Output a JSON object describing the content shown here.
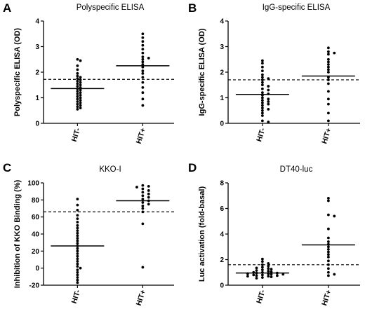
{
  "chart_data": [
    {
      "type": "scatter",
      "panel_label": "A",
      "title": "Polyspecific ELISA",
      "ylabel": "Polyspecific ELISA (OD)",
      "ylim": [
        0,
        4
      ],
      "yticks": [
        0,
        1,
        2,
        3,
        4
      ],
      "categories": [
        "HIT-",
        "HIT+"
      ],
      "cutoff": 1.72,
      "series": [
        {
          "category": "HIT-",
          "mean": 1.36,
          "values": [
            2.5,
            2.45,
            2.25,
            2.1,
            1.95,
            1.85,
            1.8,
            1.75,
            1.7,
            1.65,
            1.6,
            1.55,
            1.5,
            1.45,
            1.4,
            1.35,
            1.3,
            1.25,
            1.2,
            1.15,
            1.1,
            1.05,
            1.0,
            0.95,
            0.9,
            0.85,
            0.8,
            0.75,
            0.7,
            0.65,
            0.6,
            0.55
          ]
        },
        {
          "category": "HIT+",
          "mean": 2.25,
          "values": [
            3.5,
            3.35,
            3.2,
            3.05,
            2.9,
            2.75,
            2.6,
            2.55,
            2.5,
            2.4,
            2.3,
            2.2,
            2.05,
            1.95,
            1.8,
            1.6,
            1.4,
            1.2,
            0.95,
            0.7
          ]
        }
      ]
    },
    {
      "type": "scatter",
      "panel_label": "B",
      "title": "IgG-specific ELISA",
      "ylabel": "IgG-specific ELISA (OD)",
      "ylim": [
        0,
        4
      ],
      "yticks": [
        0,
        1,
        2,
        3,
        4
      ],
      "categories": [
        "HIT-",
        "HIT+"
      ],
      "cutoff": 1.7,
      "series": [
        {
          "category": "HIT-",
          "mean": 1.13,
          "values": [
            2.45,
            2.35,
            2.2,
            2.05,
            1.9,
            1.8,
            1.75,
            1.7,
            1.6,
            1.5,
            1.45,
            1.35,
            1.3,
            1.2,
            1.15,
            1.1,
            1.0,
            0.95,
            0.9,
            0.85,
            0.8,
            0.75,
            0.7,
            0.6,
            0.55,
            0.5,
            0.4,
            0.3,
            0.1,
            0.05
          ]
        },
        {
          "category": "HIT+",
          "mean": 1.85,
          "values": [
            2.95,
            2.8,
            2.75,
            2.7,
            2.5,
            2.4,
            2.3,
            2.2,
            2.1,
            2.0,
            1.8,
            1.7,
            1.55,
            1.25,
            0.95,
            0.75,
            0.4,
            0.1
          ]
        }
      ]
    },
    {
      "type": "scatter",
      "panel_label": "C",
      "title": "KKO-I",
      "ylabel": "Inhibition of KKO Binding (%)",
      "ylim": [
        -20,
        100
      ],
      "yticks": [
        -20,
        0,
        20,
        40,
        60,
        80,
        100
      ],
      "categories": [
        "HIT-",
        "HIT+"
      ],
      "cutoff": 66,
      "series": [
        {
          "category": "HIT-",
          "mean": 26,
          "values": [
            81,
            74,
            68,
            62,
            58,
            54,
            50,
            47,
            44,
            41,
            38,
            35,
            32,
            29,
            26,
            23,
            20,
            17,
            14,
            11,
            8,
            5,
            2,
            0,
            -2,
            -5,
            -8,
            -11,
            -14,
            -17
          ]
        },
        {
          "category": "HIT+",
          "mean": 79,
          "values": [
            97,
            96,
            95,
            93,
            91,
            89,
            87,
            85,
            83,
            81,
            79,
            77,
            75,
            73,
            70,
            66,
            52,
            1
          ]
        }
      ]
    },
    {
      "type": "scatter",
      "panel_label": "D",
      "title": "DT40-luc",
      "ylabel": "Luc activation (fold-basal)",
      "ylim": [
        0,
        8
      ],
      "yticks": [
        0,
        2,
        4,
        6,
        8
      ],
      "categories": [
        "HIT-",
        "HIT+"
      ],
      "cutoff": 1.6,
      "series": [
        {
          "category": "HIT-",
          "mean": 0.95,
          "values": [
            2.05,
            1.85,
            1.7,
            1.6,
            1.5,
            1.4,
            1.35,
            1.3,
            1.25,
            1.2,
            1.15,
            1.1,
            1.05,
            1.0,
            1.0,
            0.95,
            0.95,
            0.9,
            0.9,
            0.85,
            0.85,
            0.8,
            0.8,
            0.75,
            0.75,
            0.7,
            0.7,
            0.65,
            0.6,
            0.55
          ]
        },
        {
          "category": "HIT+",
          "mean": 3.15,
          "values": [
            6.8,
            6.6,
            5.5,
            5.4,
            4.4,
            3.7,
            3.4,
            3.2,
            3.0,
            2.8,
            2.6,
            2.4,
            2.2,
            1.9,
            1.6,
            1.3,
            1.0,
            0.85,
            0.75
          ]
        }
      ]
    }
  ]
}
